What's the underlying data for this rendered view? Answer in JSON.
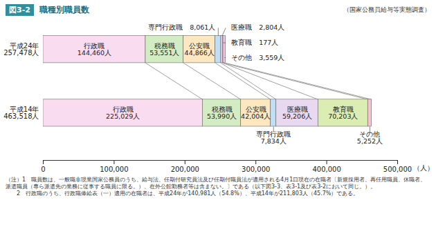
{
  "chart_data": {
    "type": "bar",
    "orientation": "horizontal",
    "stacked": true,
    "data_labels": true,
    "grid": false,
    "figure_label": "図3-2",
    "title": "職種別職員数",
    "source": "（国家公務員給与等実態調査）",
    "categories": [
      "平成24年",
      "平成14年"
    ],
    "total_labels": [
      "257,478人",
      "463,518人"
    ],
    "series": [
      {
        "name": "行政職",
        "color": "#f9dcef",
        "values": [
          144460,
          225029
        ],
        "value_labels": [
          "144,460人",
          "225,029人"
        ]
      },
      {
        "name": "税務職",
        "color": "#d4ecc4",
        "values": [
          53551,
          53990
        ],
        "value_labels": [
          "53,551人",
          "53,990人"
        ]
      },
      {
        "name": "公安職",
        "color": "#fde7c0",
        "values": [
          44866,
          42004
        ],
        "value_labels": [
          "44,866人",
          "42,004人"
        ]
      },
      {
        "name": "専門行政職",
        "color": "#bfe0f4",
        "values": [
          8061,
          7834
        ],
        "value_labels": [
          "8,061人",
          "7,834人"
        ]
      },
      {
        "name": "医療職",
        "color": "#e8d9f0",
        "values": [
          2804,
          59206
        ],
        "value_labels": [
          "2,804人",
          "59,206人"
        ]
      },
      {
        "name": "教育職",
        "color": "#dcedb4",
        "values": [
          177,
          70203
        ],
        "value_labels": [
          "177人",
          "70,203人"
        ]
      },
      {
        "name": "その他",
        "color": "#f5c4d6",
        "values": [
          3559,
          5252
        ],
        "value_labels": [
          "3,559人",
          "5,252人"
        ]
      }
    ],
    "xlim": [
      0,
      500000
    ],
    "xticks": [
      0,
      {
        "value": 100000,
        "label": "100,000"
      },
      {
        "value": 200000,
        "label": "200,000"
      },
      {
        "value": 300000,
        "label": "300,000"
      },
      {
        "value": 400000,
        "label": "400,000"
      },
      {
        "value": 500000,
        "label": "500,000"
      }
    ],
    "xlabel": "（人）",
    "notes_label": "（注）",
    "notes": [
      "1　職員数は、一般職非現業国家公務員のうち、給与法、任期付研究員法及び任期付職員法が適用される4月1日現在の在職者〔新規採用者、再任用職員、休職者、派遣職員（専ら派遣先の業務に従事する職員に限る。）、在外公館勤務者等は含まない。〕である（以下図3-3、表3-1及び表3-2において同じ。）。",
      "2　行政職のうち、行政職俸給表（一）適用の在職者は、平成24年が140,981人（54.8%）、平成14年が211,803人（45.7%）である。"
    ]
  }
}
